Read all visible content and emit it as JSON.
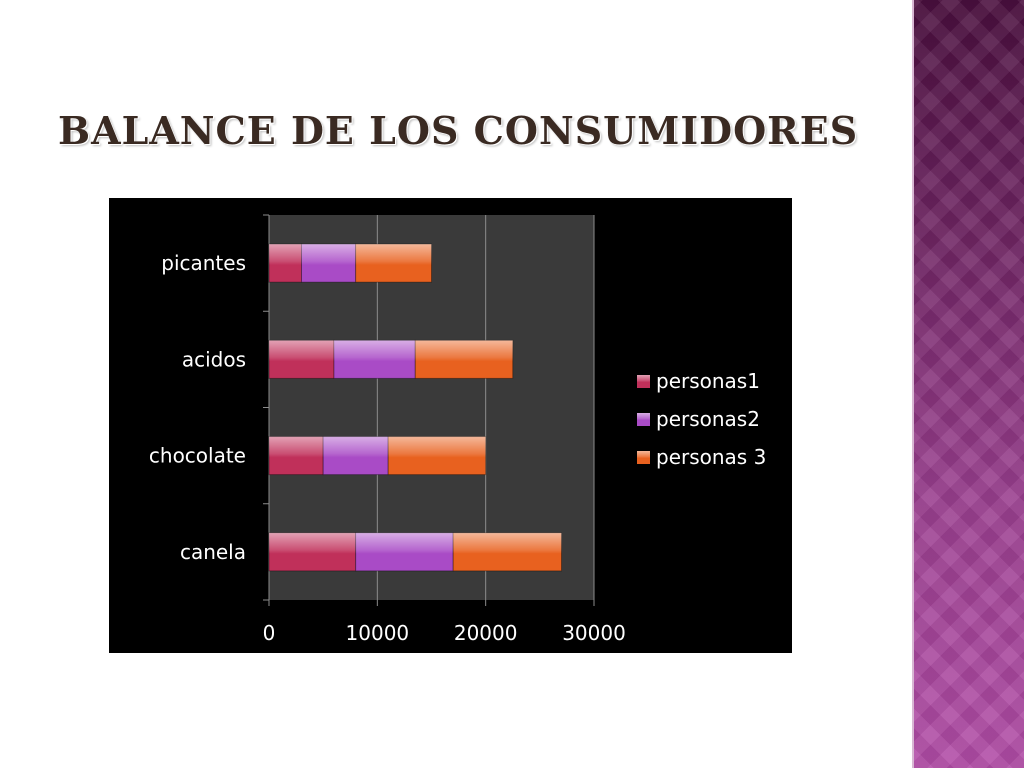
{
  "slide": {
    "title": "Balance de los consumidores"
  },
  "chart_data": {
    "type": "bar",
    "orientation": "horizontal",
    "stacked": true,
    "categories": [
      "canela",
      "chocolate",
      "acidos",
      "picantes"
    ],
    "series": [
      {
        "name": "personas1",
        "values": [
          8000,
          5000,
          6000,
          3000
        ],
        "color": "#c0305a"
      },
      {
        "name": "personas2",
        "values": [
          9000,
          6000,
          7500,
          5000
        ],
        "color": "#a94bc6"
      },
      {
        "name": "personas 3",
        "values": [
          10000,
          9000,
          9000,
          7000
        ],
        "color": "#e8611f"
      }
    ],
    "xlim": [
      0,
      30000
    ],
    "x_ticks": [
      "0",
      "10000",
      "20000",
      "30000"
    ],
    "grid": true,
    "legend_position": "right",
    "plot_background": "#3a3a3a",
    "background": "#000000"
  }
}
